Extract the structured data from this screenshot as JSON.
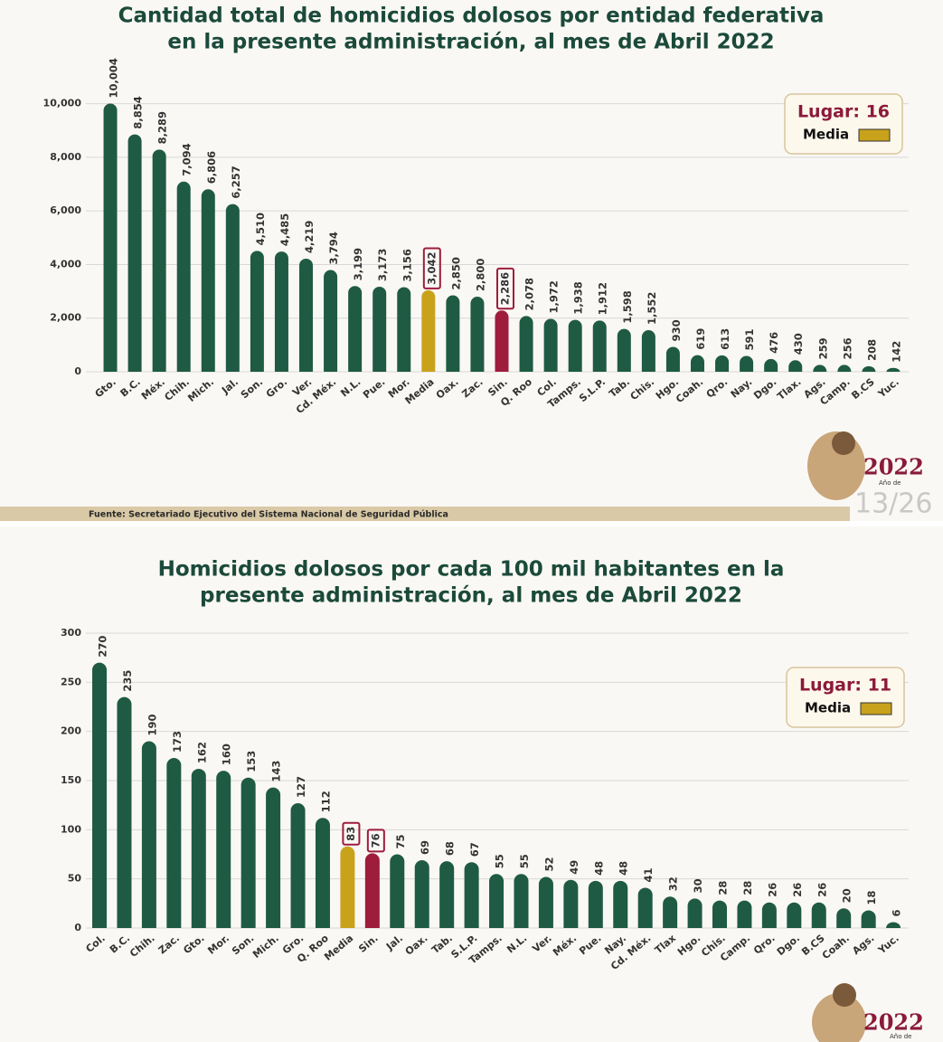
{
  "chart_data": [
    {
      "type": "bar",
      "title": [
        "Cantidad total de homicidios dolosos por entidad federativa",
        "en la presente administración, al mes de Abril 2022"
      ],
      "categories": [
        "Gto.",
        "B.C.",
        "Méx.",
        "Chih.",
        "Mich.",
        "Jal.",
        "Son.",
        "Gro.",
        "Ver.",
        "Cd. Méx.",
        "N.L.",
        "Pue.",
        "Mor.",
        "Media",
        "Oax.",
        "Zac.",
        "Sin.",
        "Q. Roo",
        "Col.",
        "Tamps.",
        "S.L.P.",
        "Tab.",
        "Chis.",
        "Hgo.",
        "Coah.",
        "Qro.",
        "Nay.",
        "Dgo.",
        "Tlax.",
        "Ags.",
        "Camp.",
        "B.CS",
        "Yuc."
      ],
      "values": [
        10004,
        8854,
        8289,
        7094,
        6806,
        6257,
        4510,
        4485,
        4219,
        3794,
        3199,
        3173,
        3156,
        3042,
        2850,
        2800,
        2286,
        2078,
        1972,
        1938,
        1912,
        1598,
        1552,
        930,
        619,
        613,
        591,
        476,
        430,
        259,
        256,
        208,
        142
      ],
      "value_labels": [
        "10,004",
        "8,854",
        "8,289",
        "7,094",
        "6,806",
        "6,257",
        "4,510",
        "4,485",
        "4,219",
        "3,794",
        "3,199",
        "3,173",
        "3,156",
        "3,042",
        "2,850",
        "2,800",
        "2,286",
        "2,078",
        "1,972",
        "1,938",
        "1,912",
        "1,598",
        "1,552",
        "930",
        "619",
        "613",
        "591",
        "476",
        "430",
        "259",
        "256",
        "208",
        "142"
      ],
      "color": "#1f5a45",
      "highlight_colors": {
        "13": "#c9a21c",
        "16": "#9e1c3c"
      },
      "boxed_indices": [
        13,
        16
      ],
      "ylim": [
        0,
        11000
      ],
      "yticks": [
        0,
        {
          "value": 2000,
          "label": "2,000"
        },
        {
          "value": 4000,
          "label": "4,000"
        },
        {
          "value": 6000,
          "label": "6,000"
        },
        {
          "value": 8000,
          "label": "8,000"
        },
        {
          "value": 10000,
          "label": "10,000"
        }
      ],
      "grid": true,
      "legend": {
        "title": "Lugar: 16",
        "label": "Media",
        "color": "#c9a21c",
        "corner": "top-right"
      },
      "source": "Fuente: Secretariado Ejecutivo del Sistema Nacional de Seguridad Pública",
      "page_number": "13/26"
    },
    {
      "type": "bar",
      "title": [
        "Homicidios dolosos por cada 100 mil habitantes en la",
        "presente administración, al mes de Abril 2022"
      ],
      "categories": [
        "Col.",
        "B.C.",
        "Chih.",
        "Zac.",
        "Gto.",
        "Mor.",
        "Son.",
        "Mich.",
        "Gro.",
        "Q. Roo",
        "Media",
        "Sin.",
        "Jal.",
        "Oax.",
        "Tab.",
        "S.L.P.",
        "Tamps.",
        "N.L.",
        "Ver.",
        "Méx.",
        "Pue.",
        "Nay.",
        "Cd. Méx.",
        "Tlax",
        "Hgo.",
        "Chis.",
        "Camp.",
        "Qro.",
        "Dgo.",
        "B.CS",
        "Coah.",
        "Ags.",
        "Yuc."
      ],
      "values": [
        270,
        235,
        190,
        173,
        162,
        160,
        153,
        143,
        127,
        112,
        83,
        76,
        75,
        69,
        68,
        67,
        55,
        55,
        52,
        49,
        48,
        48,
        41,
        32,
        30,
        28,
        28,
        26,
        26,
        26,
        20,
        18,
        6
      ],
      "color": "#1f5a45",
      "highlight_colors": {
        "10": "#c9a21c",
        "11": "#9e1c3c"
      },
      "boxed_indices": [
        10,
        11
      ],
      "ylim": [
        0,
        300
      ],
      "yticks": [
        0,
        50,
        100,
        150,
        200,
        250,
        300
      ],
      "grid": true,
      "legend": {
        "title": "Lugar: 11",
        "label": "Media",
        "color": "#c9a21c",
        "corner": "top-right"
      }
    }
  ],
  "logo": {
    "year": "2022",
    "caption": "Año de"
  }
}
